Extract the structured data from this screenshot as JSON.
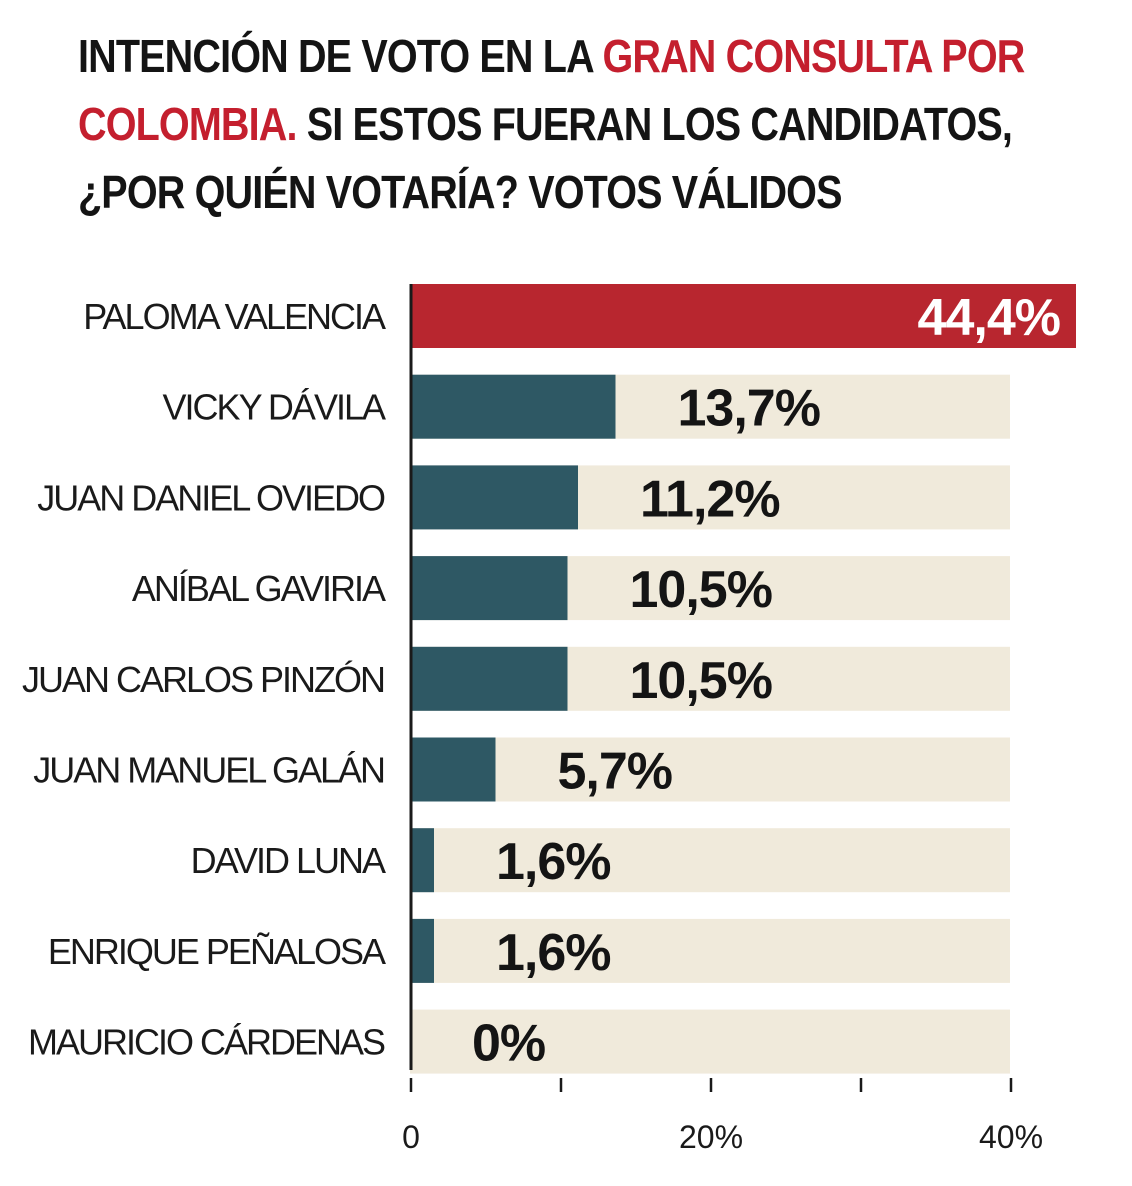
{
  "title": {
    "part1": "INTENCIÓN DE VOTO EN LA ",
    "highlight1": "GRAN CONSULTA POR",
    "highlight2": "COLOMBIA.",
    "part2": " SI ESTOS FUERAN LOS CANDIDATOS,",
    "part3": "¿POR QUIÉN VOTARÍA? VOTOS VÁLIDOS"
  },
  "colors": {
    "highlight": "#c41f2e",
    "top_bar": "#b8262f",
    "bar": "#2e5864",
    "track": "#f0eadb",
    "axis": "#1a1a1a"
  },
  "chart_data": {
    "type": "bar",
    "orientation": "horizontal",
    "title": "INTENCIÓN DE VOTO EN LA GRAN CONSULTA POR COLOMBIA. SI ESTOS FUERAN LOS CANDIDATOS, ¿POR QUIÉN VOTARÍA? VOTOS VÁLIDOS",
    "categories": [
      "PALOMA VALENCIA",
      "VICKY DÁVILA",
      "JUAN DANIEL OVIEDO",
      "ANÍBAL GAVIRIA",
      "JUAN CARLOS PINZÓN",
      "JUAN MANUEL GALÁN",
      "DAVID LUNA",
      "ENRIQUE PEÑALOSA",
      "MAURICIO CÁRDENAS"
    ],
    "values": [
      44.4,
      13.7,
      11.2,
      10.5,
      10.5,
      5.7,
      1.6,
      1.6,
      0
    ],
    "value_labels": [
      "44,4%",
      "13,7%",
      "11,2%",
      "10,5%",
      "10,5%",
      "5,7%",
      "1,6%",
      "1,6%",
      "0%"
    ],
    "xlim": [
      0,
      40
    ],
    "ticks": [
      0,
      10,
      20,
      30,
      40
    ],
    "tick_labels": [
      "0",
      "",
      "20%",
      "",
      "40%"
    ],
    "xlabel": "",
    "ylabel": "",
    "grid": false,
    "legend": "none"
  }
}
